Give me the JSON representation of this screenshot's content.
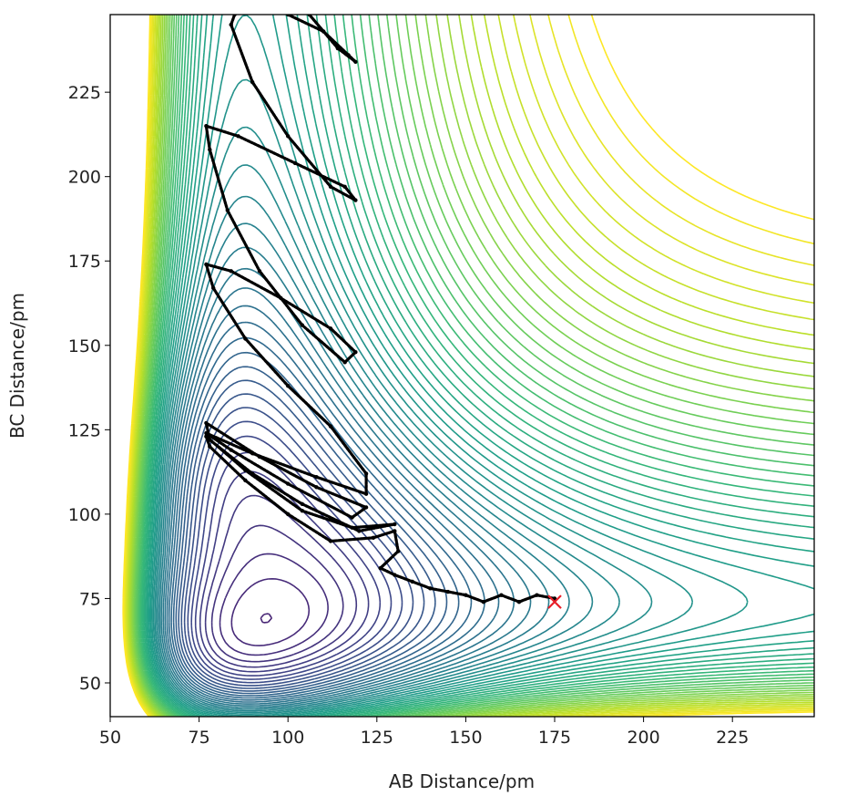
{
  "chart_data": {
    "type": "contour",
    "title": "",
    "xlabel": "AB Distance/pm",
    "ylabel": "BC Distance/pm",
    "xlim": [
      50,
      248
    ],
    "ylim": [
      40,
      248
    ],
    "xticks": [
      "50",
      "75",
      "100",
      "125",
      "150",
      "175",
      "200",
      "225"
    ],
    "yticks": [
      "50",
      "75",
      "100",
      "125",
      "150",
      "175",
      "200",
      "225"
    ],
    "colormap": [
      "#440154",
      "#482878",
      "#3e4989",
      "#31688e",
      "#26828e",
      "#1f9e89",
      "#35b779",
      "#6ece58",
      "#b5de2b",
      "#fde725"
    ],
    "contour_levels": 60,
    "start_marker": {
      "x": 175,
      "y": 74,
      "color": "#e8202a",
      "symbol": "x"
    },
    "trajectory": {
      "color": "#000000",
      "points": [
        [
          175,
          75
        ],
        [
          170,
          76
        ],
        [
          165,
          74
        ],
        [
          160,
          76
        ],
        [
          155,
          74
        ],
        [
          150,
          76
        ],
        [
          145,
          77
        ],
        [
          140,
          78
        ],
        [
          135,
          80
        ],
        [
          130,
          82
        ],
        [
          126,
          84
        ],
        [
          131,
          89
        ],
        [
          130,
          95
        ],
        [
          124,
          93
        ],
        [
          112,
          92
        ],
        [
          100,
          100
        ],
        [
          88,
          110
        ],
        [
          78,
          120
        ],
        [
          77,
          123
        ],
        [
          88,
          113
        ],
        [
          104,
          101
        ],
        [
          118,
          96
        ],
        [
          130,
          97
        ],
        [
          120,
          95
        ],
        [
          104,
          103
        ],
        [
          90,
          112
        ],
        [
          78,
          122
        ],
        [
          77,
          127
        ],
        [
          92,
          117
        ],
        [
          108,
          108
        ],
        [
          122,
          102
        ],
        [
          118,
          99
        ],
        [
          100,
          109
        ],
        [
          84,
          119
        ],
        [
          77,
          124
        ],
        [
          90,
          118
        ],
        [
          108,
          111
        ],
        [
          122,
          106
        ],
        [
          122,
          112
        ],
        [
          112,
          126
        ],
        [
          100,
          138
        ],
        [
          88,
          152
        ],
        [
          79,
          167
        ],
        [
          77,
          174
        ],
        [
          84,
          172
        ],
        [
          98,
          164
        ],
        [
          112,
          155
        ],
        [
          119,
          148
        ],
        [
          116,
          145
        ],
        [
          104,
          156
        ],
        [
          92,
          172
        ],
        [
          83,
          190
        ],
        [
          78,
          208
        ],
        [
          77,
          215
        ],
        [
          86,
          212
        ],
        [
          102,
          204
        ],
        [
          116,
          197
        ],
        [
          119,
          193
        ],
        [
          112,
          197
        ],
        [
          100,
          212
        ],
        [
          90,
          228
        ],
        [
          84,
          245
        ],
        [
          85,
          248
        ]
      ],
      "top_loop": [
        [
          100,
          248
        ],
        [
          110,
          243
        ],
        [
          117,
          236
        ],
        [
          119,
          234
        ],
        [
          114,
          238
        ],
        [
          106,
          248
        ]
      ]
    }
  }
}
